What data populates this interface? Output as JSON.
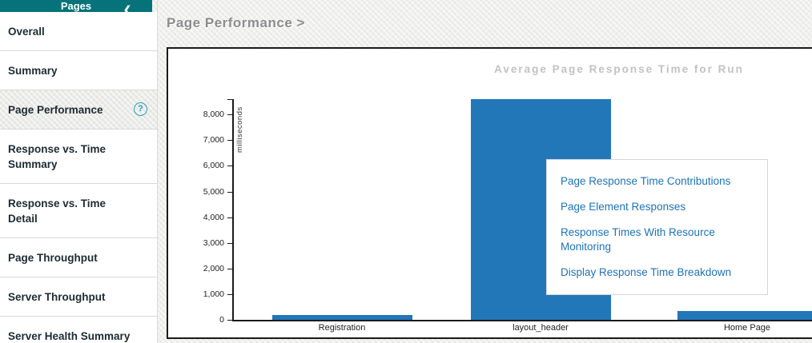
{
  "sidebar": {
    "title": "Pages",
    "collapse_icon": "❮",
    "items": [
      {
        "label": "Overall",
        "selected": false,
        "has_help": false
      },
      {
        "label": "Summary",
        "selected": false,
        "has_help": false
      },
      {
        "label": "Page Performance",
        "selected": true,
        "has_help": true
      },
      {
        "label": "Response vs. Time Summary",
        "selected": false,
        "has_help": false
      },
      {
        "label": "Response vs. Time Detail",
        "selected": false,
        "has_help": false
      },
      {
        "label": "Page Throughput",
        "selected": false,
        "has_help": false
      },
      {
        "label": "Server Throughput",
        "selected": false,
        "has_help": false
      },
      {
        "label": "Server Health Summary",
        "selected": false,
        "has_help": false
      }
    ],
    "help_glyph": "?"
  },
  "main": {
    "breadcrumb": "Page Performance >"
  },
  "chart_data": {
    "type": "bar",
    "title": "Average Page Response Time for Run",
    "ylabel": "milliseconds",
    "xlabel": "",
    "categories": [
      "Registration",
      "layout_header",
      "Home Page"
    ],
    "values": [
      190,
      8600,
      340
    ],
    "ylim": [
      0,
      8600
    ],
    "ytick_interval": 1000,
    "ytick_labels": [
      "0",
      "1,000",
      "2,000",
      "3,000",
      "4,000",
      "5,000",
      "6,000",
      "7,000",
      "8,000"
    ],
    "bar_color": "#2277b8",
    "grid": false,
    "legend": null
  },
  "context_menu": {
    "items": [
      "Page Response Time Contributions",
      "Page Element Responses",
      "Response Times With Resource Monitoring",
      "Display Response Time Breakdown"
    ],
    "link_color": "#1e73b8"
  },
  "colors": {
    "sidebar_header_bg": "#06737a",
    "selected_item_bg": "#ebebe8",
    "bar": "#2277b8",
    "title_gray": "#8d8d8d",
    "chart_title_gray": "#c2c2c2",
    "help_icon": "#27a0c0"
  }
}
